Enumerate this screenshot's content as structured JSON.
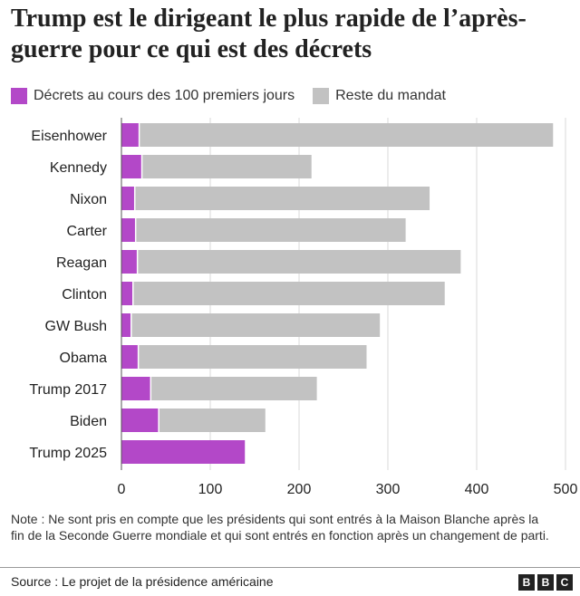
{
  "chart_data": {
    "type": "bar",
    "orientation": "horizontal",
    "stacked": true,
    "title": "Trump est le dirigeant le plus rapide de l’après-guerre pour ce qui est des décrets",
    "categories": [
      "Eisenhower",
      "Kennedy",
      "Nixon",
      "Carter",
      "Reagan",
      "Clinton",
      "GW Bush",
      "Obama",
      "Trump 2017",
      "Biden",
      "Trump 2025"
    ],
    "series": [
      {
        "name": "Décrets au cours des 100 premiers jours",
        "color": "#b348c8",
        "values": [
          20,
          23,
          15,
          16,
          18,
          13,
          11,
          19,
          33,
          42,
          139
        ]
      },
      {
        "name": "Reste du mandat",
        "color": "#c2c2c2",
        "values": [
          466,
          191,
          332,
          304,
          364,
          351,
          280,
          257,
          187,
          120,
          0
        ]
      }
    ],
    "xlim": [
      0,
      500
    ],
    "xticks": [
      "0",
      "100",
      "200",
      "300",
      "400",
      "500"
    ],
    "xlabel": "",
    "ylabel": "",
    "legend_position": "top-left",
    "grid": true
  },
  "header": {
    "title": "Trump est le dirigeant le plus rapide de l’après-guerre pour ce qui est des décrets"
  },
  "legend": {
    "items": [
      {
        "label": "Décrets au cours des 100 premiers jours",
        "color": "#b348c8"
      },
      {
        "label": "Reste du mandat",
        "color": "#c2c2c2"
      }
    ]
  },
  "footer": {
    "note": "Note : Ne sont pris en compte que les présidents qui sont entrés à la Maison Blanche après la fin de la Seconde Guerre mondiale et qui sont entrés en fonction après un changement de parti.",
    "source": "Source : Le projet de la présidence américaine",
    "logo": [
      "B",
      "B",
      "C"
    ]
  }
}
